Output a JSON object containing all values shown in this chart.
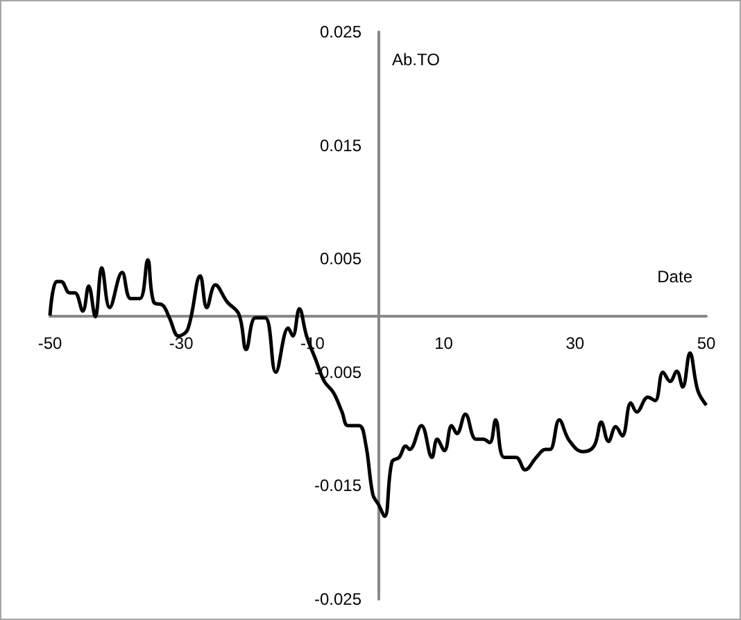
{
  "chart_data": {
    "type": "line",
    "xlabel": "Date",
    "ylabel": "Ab.TO",
    "xlim": [
      -50,
      50
    ],
    "xticks": [
      -50,
      -30,
      -10,
      10,
      30,
      50
    ],
    "ylim": [
      -0.025,
      0.025
    ],
    "yticks": [
      -0.025,
      -0.015,
      -0.005,
      0.005,
      0.015,
      0.025
    ],
    "grid": false,
    "marker": "none",
    "line_style": "solid",
    "series": [
      {
        "color": "#000000",
        "x": [
          -50,
          -49,
          -48.3,
          -47,
          -46.2,
          -45,
          -44.1,
          -43.1,
          -42.1,
          -40.9,
          -39,
          -37.7,
          -36.3,
          -35.1,
          -34.2,
          -32.8,
          -31.8,
          -30.4,
          -29,
          -27.1,
          -26.1,
          -24.8,
          -23,
          -21.2,
          -20.1,
          -18.7,
          -17.2,
          -15.6,
          -13.7,
          -13,
          -12,
          -10.9,
          -9.5,
          -8.2,
          -6.8,
          -5.5,
          -4.6,
          -2.9,
          -1.9,
          -0.8,
          0,
          1,
          2.1,
          3.2,
          4.2,
          4.8,
          6.6,
          8.2,
          9,
          10.1,
          11.2,
          12,
          13.3,
          14.9,
          16,
          17,
          17.9,
          19.2,
          21,
          22.4,
          24.1,
          25.5,
          26.2,
          27.6,
          29.1,
          31.2,
          32.9,
          34,
          35.1,
          36.2,
          37.2,
          38.5,
          39.4,
          41.1,
          42.2,
          43.4,
          44.5,
          45.5,
          46.4,
          47.5,
          48.7,
          50
        ],
        "values": [
          0,
          0.003,
          0.003,
          0.002,
          0.002,
          0.0004,
          0.0026,
          -0.0001,
          0.0042,
          0.0007,
          0.0038,
          0.0015,
          0.0015,
          0.0049,
          0.0012,
          0.0009,
          -0.0002,
          -0.0018,
          -0.0012,
          0.0035,
          0.0007,
          0.0027,
          0.0012,
          0.0001,
          -0.003,
          -0.0002,
          -0.0002,
          -0.005,
          -0.0011,
          -0.0018,
          0.0006,
          -0.0018,
          -0.0039,
          -0.0058,
          -0.0068,
          -0.0085,
          -0.0097,
          -0.0097,
          -0.0113,
          -0.0158,
          -0.0166,
          -0.0177,
          -0.0129,
          -0.0125,
          -0.0115,
          -0.0118,
          -0.0097,
          -0.0125,
          -0.0109,
          -0.0119,
          -0.0097,
          -0.0104,
          -0.0087,
          -0.0109,
          -0.0109,
          -0.0112,
          -0.0092,
          -0.0125,
          -0.0125,
          -0.0136,
          -0.0125,
          -0.0118,
          -0.0118,
          -0.0092,
          -0.011,
          -0.012,
          -0.0115,
          -0.0094,
          -0.0111,
          -0.0098,
          -0.0106,
          -0.0077,
          -0.0085,
          -0.0072,
          -0.0075,
          -0.005,
          -0.0058,
          -0.0049,
          -0.0063,
          -0.0033,
          -0.0066,
          -0.0079
        ]
      }
    ]
  }
}
